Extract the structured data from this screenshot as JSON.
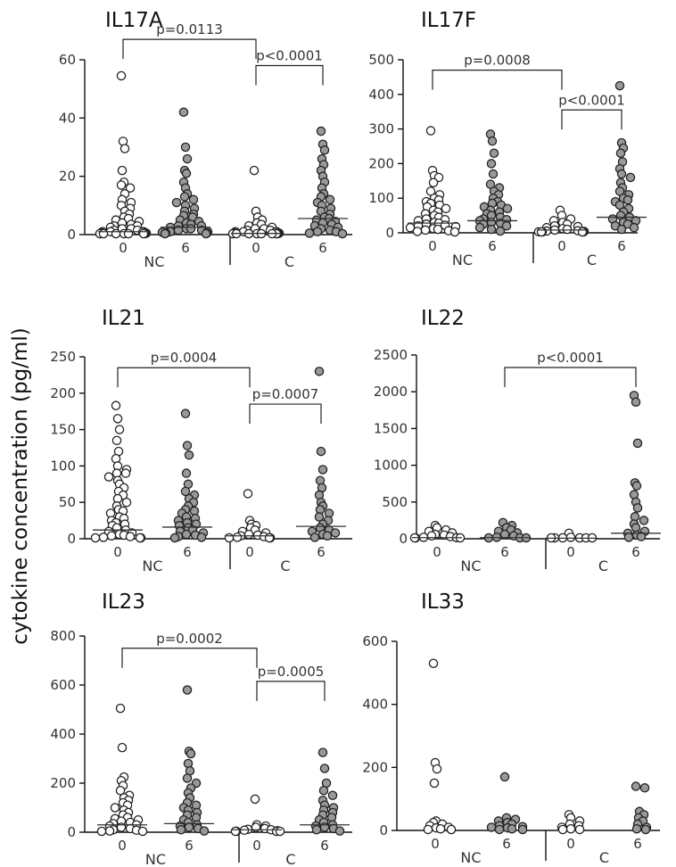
{
  "y_axis_label": "cytokine concentration (pg/ml)",
  "colors": {
    "open": "#ffffff",
    "filled": "#999999",
    "stroke": "#222222"
  },
  "chart_data": [
    {
      "type": "scatter",
      "title": "IL17A",
      "ylim": [
        0,
        60
      ],
      "yticks": [
        "0",
        "20",
        "40",
        "60"
      ],
      "categories": [
        "0",
        "6",
        "0",
        "6"
      ],
      "groups": [
        "NC",
        "C"
      ],
      "medians": [
        1,
        2.5,
        0.4,
        5.5
      ],
      "series": [
        {
          "name": "NC 0",
          "fill": "open",
          "values": [
            54.5,
            32,
            29.5,
            22,
            18,
            17,
            16,
            14,
            12,
            11,
            10,
            9,
            8,
            7,
            6,
            5.5,
            5,
            4.5,
            4,
            3.5,
            3,
            3,
            2.5,
            2,
            2,
            1.5,
            1.5,
            1,
            1,
            1,
            0.8,
            0.6,
            0.5,
            0.5,
            0.4,
            0.3,
            0.3,
            0.2,
            0.2,
            0.1,
            0.1,
            0
          ]
        },
        {
          "name": "NC 6",
          "fill": "filled",
          "values": [
            42,
            30,
            26,
            22,
            21,
            18,
            16,
            14,
            13,
            12,
            11,
            10,
            9,
            8,
            7,
            6.5,
            6,
            5,
            4.5,
            4,
            3.5,
            3,
            3,
            2.5,
            2,
            2,
            1.5,
            1.5,
            1,
            1,
            0.8,
            0.5,
            0.5,
            0.3,
            0.2
          ]
        },
        {
          "name": "C 0",
          "fill": "open",
          "values": [
            22,
            8,
            6,
            5,
            4,
            3.5,
            3,
            2.5,
            2,
            2,
            1.5,
            1.5,
            1,
            1,
            1,
            0.8,
            0.6,
            0.5,
            0.5,
            0.4,
            0.3,
            0.3,
            0.2,
            0.2,
            0.1,
            0.1,
            0,
            0
          ]
        },
        {
          "name": "C 6",
          "fill": "filled",
          "values": [
            35.5,
            31,
            29,
            26,
            24,
            22,
            20,
            18,
            16,
            14,
            13,
            12,
            11,
            10,
            9,
            8,
            7,
            6,
            5.5,
            5,
            4.5,
            4,
            3.5,
            3,
            2.5,
            2,
            1.5,
            1,
            1,
            0.5,
            0.3
          ]
        }
      ],
      "brackets": [
        {
          "from": 0,
          "to": 2,
          "label": "p=0.0113",
          "y": 67
        },
        {
          "from": 2,
          "to": 3,
          "label": "p<0.0001",
          "y": 58
        }
      ]
    },
    {
      "type": "scatter",
      "title": "IL17F",
      "ylim": [
        0,
        500
      ],
      "yticks": [
        "0",
        "100",
        "200",
        "300",
        "400",
        "500"
      ],
      "categories": [
        "0",
        "6",
        "0",
        "6"
      ],
      "groups": [
        "NC",
        "C"
      ],
      "medians": [
        28,
        35,
        8,
        45
      ],
      "series": [
        {
          "name": "NC 0",
          "fill": "open",
          "values": [
            295,
            180,
            165,
            160,
            145,
            120,
            110,
            100,
            95,
            90,
            85,
            80,
            75,
            70,
            65,
            60,
            55,
            50,
            45,
            40,
            38,
            35,
            30,
            28,
            25,
            22,
            20,
            18,
            15,
            12,
            10,
            8,
            6,
            4,
            2
          ]
        },
        {
          "name": "NC 6",
          "fill": "filled",
          "values": [
            285,
            265,
            230,
            200,
            170,
            140,
            130,
            120,
            110,
            100,
            90,
            85,
            80,
            75,
            70,
            65,
            60,
            55,
            50,
            45,
            40,
            38,
            35,
            30,
            28,
            25,
            20,
            15,
            10,
            5
          ]
        },
        {
          "name": "C 0",
          "fill": "open",
          "values": [
            65,
            50,
            40,
            35,
            30,
            25,
            20,
            18,
            15,
            12,
            10,
            8,
            6,
            5,
            4,
            3,
            2,
            1,
            0.5,
            0
          ]
        },
        {
          "name": "C 6",
          "fill": "filled",
          "values": [
            425,
            260,
            245,
            230,
            205,
            185,
            170,
            160,
            145,
            130,
            120,
            110,
            100,
            95,
            90,
            80,
            70,
            60,
            50,
            45,
            40,
            35,
            30,
            25,
            20,
            15,
            10
          ]
        }
      ],
      "brackets": [
        {
          "from": 0,
          "to": 2,
          "label": "p=0.0008",
          "y": 470
        },
        {
          "from": 2,
          "to": 3,
          "label": "p<0.0001",
          "y": 355
        }
      ]
    },
    {
      "type": "scatter",
      "title": "IL21",
      "ylim": [
        0,
        250
      ],
      "yticks": [
        "0",
        "50",
        "100",
        "150",
        "200",
        "250"
      ],
      "categories": [
        "0",
        "6",
        "0",
        "6"
      ],
      "groups": [
        "NC",
        "C"
      ],
      "medians": [
        12,
        16,
        4,
        17
      ],
      "series": [
        {
          "name": "NC 0",
          "fill": "open",
          "values": [
            183,
            165,
            150,
            135,
            120,
            110,
            100,
            95,
            90,
            90,
            85,
            80,
            75,
            70,
            65,
            60,
            55,
            50,
            45,
            40,
            38,
            35,
            30,
            28,
            25,
            22,
            20,
            18,
            15,
            12,
            10,
            8,
            6,
            5,
            4,
            3,
            2,
            1,
            0.5,
            0
          ]
        },
        {
          "name": "NC 6",
          "fill": "filled",
          "values": [
            172,
            128,
            115,
            90,
            75,
            65,
            60,
            55,
            50,
            45,
            40,
            38,
            35,
            30,
            28,
            25,
            22,
            20,
            18,
            15,
            12,
            10,
            8,
            6,
            5,
            3,
            2,
            1
          ]
        },
        {
          "name": "C 0",
          "fill": "open",
          "values": [
            62,
            25,
            20,
            18,
            15,
            12,
            10,
            8,
            6,
            5,
            4,
            3,
            2,
            1,
            0.5,
            0
          ]
        },
        {
          "name": "C 6",
          "fill": "filled",
          "values": [
            230,
            120,
            95,
            80,
            70,
            60,
            50,
            45,
            40,
            35,
            30,
            25,
            20,
            15,
            12,
            10,
            8,
            6,
            4,
            2
          ]
        }
      ],
      "brackets": [
        {
          "from": 0,
          "to": 2,
          "label": "p=0.0004",
          "y": 235
        },
        {
          "from": 2,
          "to": 3,
          "label": "p=0.0007",
          "y": 185
        }
      ]
    },
    {
      "type": "scatter",
      "title": "IL22",
      "ylim": [
        0,
        2500
      ],
      "yticks": [
        "0",
        "500",
        "1000",
        "1500",
        "2000",
        "2500"
      ],
      "categories": [
        "0",
        "6",
        "0",
        "6"
      ],
      "groups": [
        "NC",
        "C"
      ],
      "medians": [
        15,
        15,
        8,
        75
      ],
      "series": [
        {
          "name": "NC 0",
          "fill": "open",
          "values": [
            180,
            150,
            120,
            100,
            80,
            60,
            50,
            40,
            30,
            20,
            15,
            10,
            5,
            0
          ]
        },
        {
          "name": "NC 6",
          "fill": "filled",
          "values": [
            220,
            180,
            150,
            120,
            100,
            80,
            60,
            40,
            20,
            10,
            5,
            0
          ]
        },
        {
          "name": "C 0",
          "fill": "open",
          "values": [
            75,
            20,
            10,
            5,
            3,
            2,
            1,
            0
          ]
        },
        {
          "name": "C 6",
          "fill": "filled",
          "values": [
            1950,
            1860,
            1300,
            760,
            720,
            600,
            500,
            420,
            300,
            250,
            200,
            150,
            100,
            75,
            50,
            30,
            20
          ]
        }
      ],
      "brackets": [
        {
          "from": 1,
          "to": 3,
          "label": "p<0.0001",
          "y": 2330
        }
      ]
    },
    {
      "type": "scatter",
      "title": "IL23",
      "ylim": [
        0,
        800
      ],
      "yticks": [
        "0",
        "200",
        "400",
        "600",
        "800"
      ],
      "categories": [
        "0",
        "6",
        "0",
        "6"
      ],
      "groups": [
        "NC",
        "C"
      ],
      "medians": [
        30,
        35,
        10,
        30
      ],
      "series": [
        {
          "name": "NC 0",
          "fill": "open",
          "values": [
            505,
            345,
            225,
            210,
            190,
            170,
            150,
            140,
            130,
            120,
            110,
            100,
            90,
            80,
            70,
            60,
            55,
            50,
            45,
            40,
            35,
            30,
            25,
            20,
            15,
            10,
            8,
            5,
            3,
            1
          ]
        },
        {
          "name": "NC 6",
          "fill": "filled",
          "values": [
            580,
            330,
            320,
            280,
            250,
            220,
            200,
            180,
            160,
            140,
            120,
            110,
            100,
            90,
            80,
            70,
            60,
            50,
            40,
            30,
            25,
            20,
            15,
            10,
            5
          ]
        },
        {
          "name": "C 0",
          "fill": "open",
          "values": [
            135,
            30,
            25,
            20,
            15,
            12,
            10,
            8,
            6,
            4,
            2,
            1,
            0
          ]
        },
        {
          "name": "C 6",
          "fill": "filled",
          "values": [
            325,
            260,
            200,
            170,
            150,
            130,
            110,
            100,
            90,
            80,
            70,
            60,
            50,
            40,
            30,
            25,
            20,
            15,
            10,
            5
          ]
        }
      ],
      "brackets": [
        {
          "from": 0,
          "to": 2,
          "label": "p=0.0002",
          "y": 750
        },
        {
          "from": 2,
          "to": 3,
          "label": "p=0.0005",
          "y": 615
        }
      ]
    },
    {
      "type": "scatter",
      "title": "IL33",
      "ylim": [
        0,
        600
      ],
      "yticks": [
        "0",
        "200",
        "400",
        "600"
      ],
      "categories": [
        "0",
        "6",
        "0",
        "6"
      ],
      "groups": [
        "NC",
        "C"
      ],
      "medians": [
        null,
        null,
        null,
        null
      ],
      "series": [
        {
          "name": "NC 0",
          "fill": "open",
          "values": [
            530,
            215,
            195,
            150,
            30,
            25,
            20,
            15,
            10,
            8,
            5,
            3,
            1
          ]
        },
        {
          "name": "NC 6",
          "fill": "filled",
          "values": [
            170,
            40,
            35,
            30,
            25,
            20,
            15,
            12,
            10,
            8,
            5,
            3,
            2
          ]
        },
        {
          "name": "C 0",
          "fill": "open",
          "values": [
            50,
            40,
            30,
            20,
            15,
            10,
            5,
            3,
            1
          ]
        },
        {
          "name": "C 6",
          "fill": "filled",
          "values": [
            140,
            135,
            60,
            50,
            40,
            30,
            20,
            10,
            5,
            2
          ]
        }
      ],
      "brackets": []
    }
  ]
}
